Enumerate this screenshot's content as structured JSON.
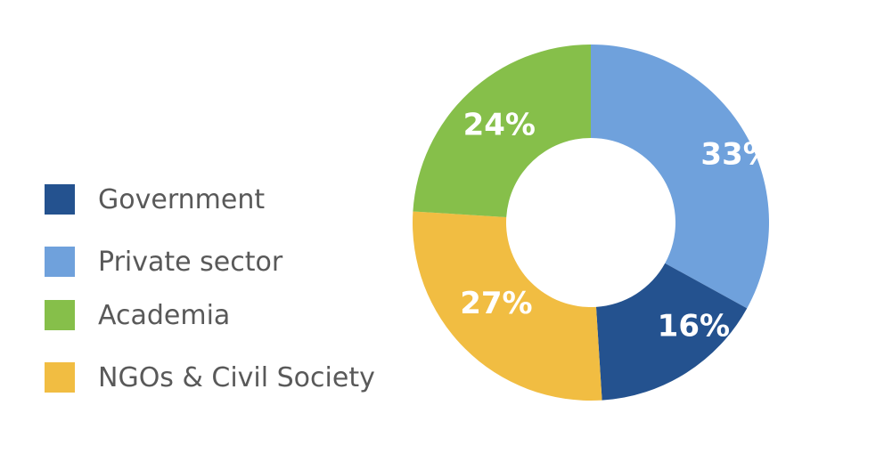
{
  "chart_data": {
    "type": "pie",
    "donut": true,
    "categories": [
      "Government",
      "Private sector",
      "Academia",
      "NGOs & Civil Society"
    ],
    "values": [
      16,
      33,
      24,
      27
    ],
    "data_labels": [
      "16%",
      "33%",
      "24%",
      "27%"
    ],
    "colors": [
      "#24528f",
      "#6fa1dc",
      "#86bf4a",
      "#f1bd42"
    ],
    "slice_order_clockwise_from_top": [
      "Private sector",
      "Government",
      "NGOs & Civil Society",
      "Academia"
    ],
    "legend_position": "left",
    "title": "",
    "xlabel": "",
    "ylabel": ""
  },
  "legend": {
    "items": [
      {
        "label": "Government",
        "color": "#24528f"
      },
      {
        "label": "Private sector",
        "color": "#6fa1dc"
      },
      {
        "label": "Academia",
        "color": "#86bf4a"
      },
      {
        "label": "NGOs & Civil Society",
        "color": "#f1bd42"
      }
    ]
  }
}
